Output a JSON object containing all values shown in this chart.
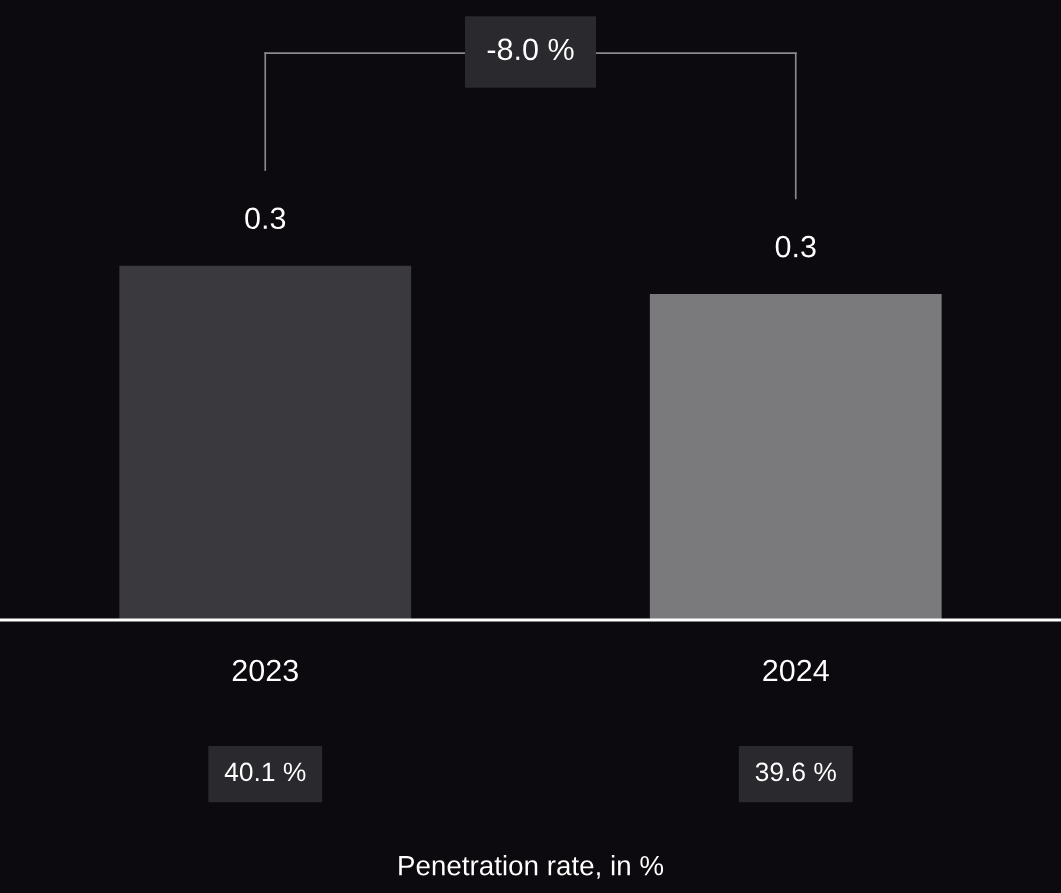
{
  "chart_data": {
    "type": "bar",
    "categories": [
      "2023",
      "2024"
    ],
    "values": [
      0.3,
      0.276
    ],
    "colors": [
      "#3a3a3e",
      "#7a7a7c"
    ],
    "value_labels": [
      "0.3",
      "0.3"
    ],
    "annotations": [
      "-8.0 %",
      "40.1 %",
      "39.6 %",
      "Penetration rate, in %"
    ],
    "grid": false,
    "legend": false
  }
}
